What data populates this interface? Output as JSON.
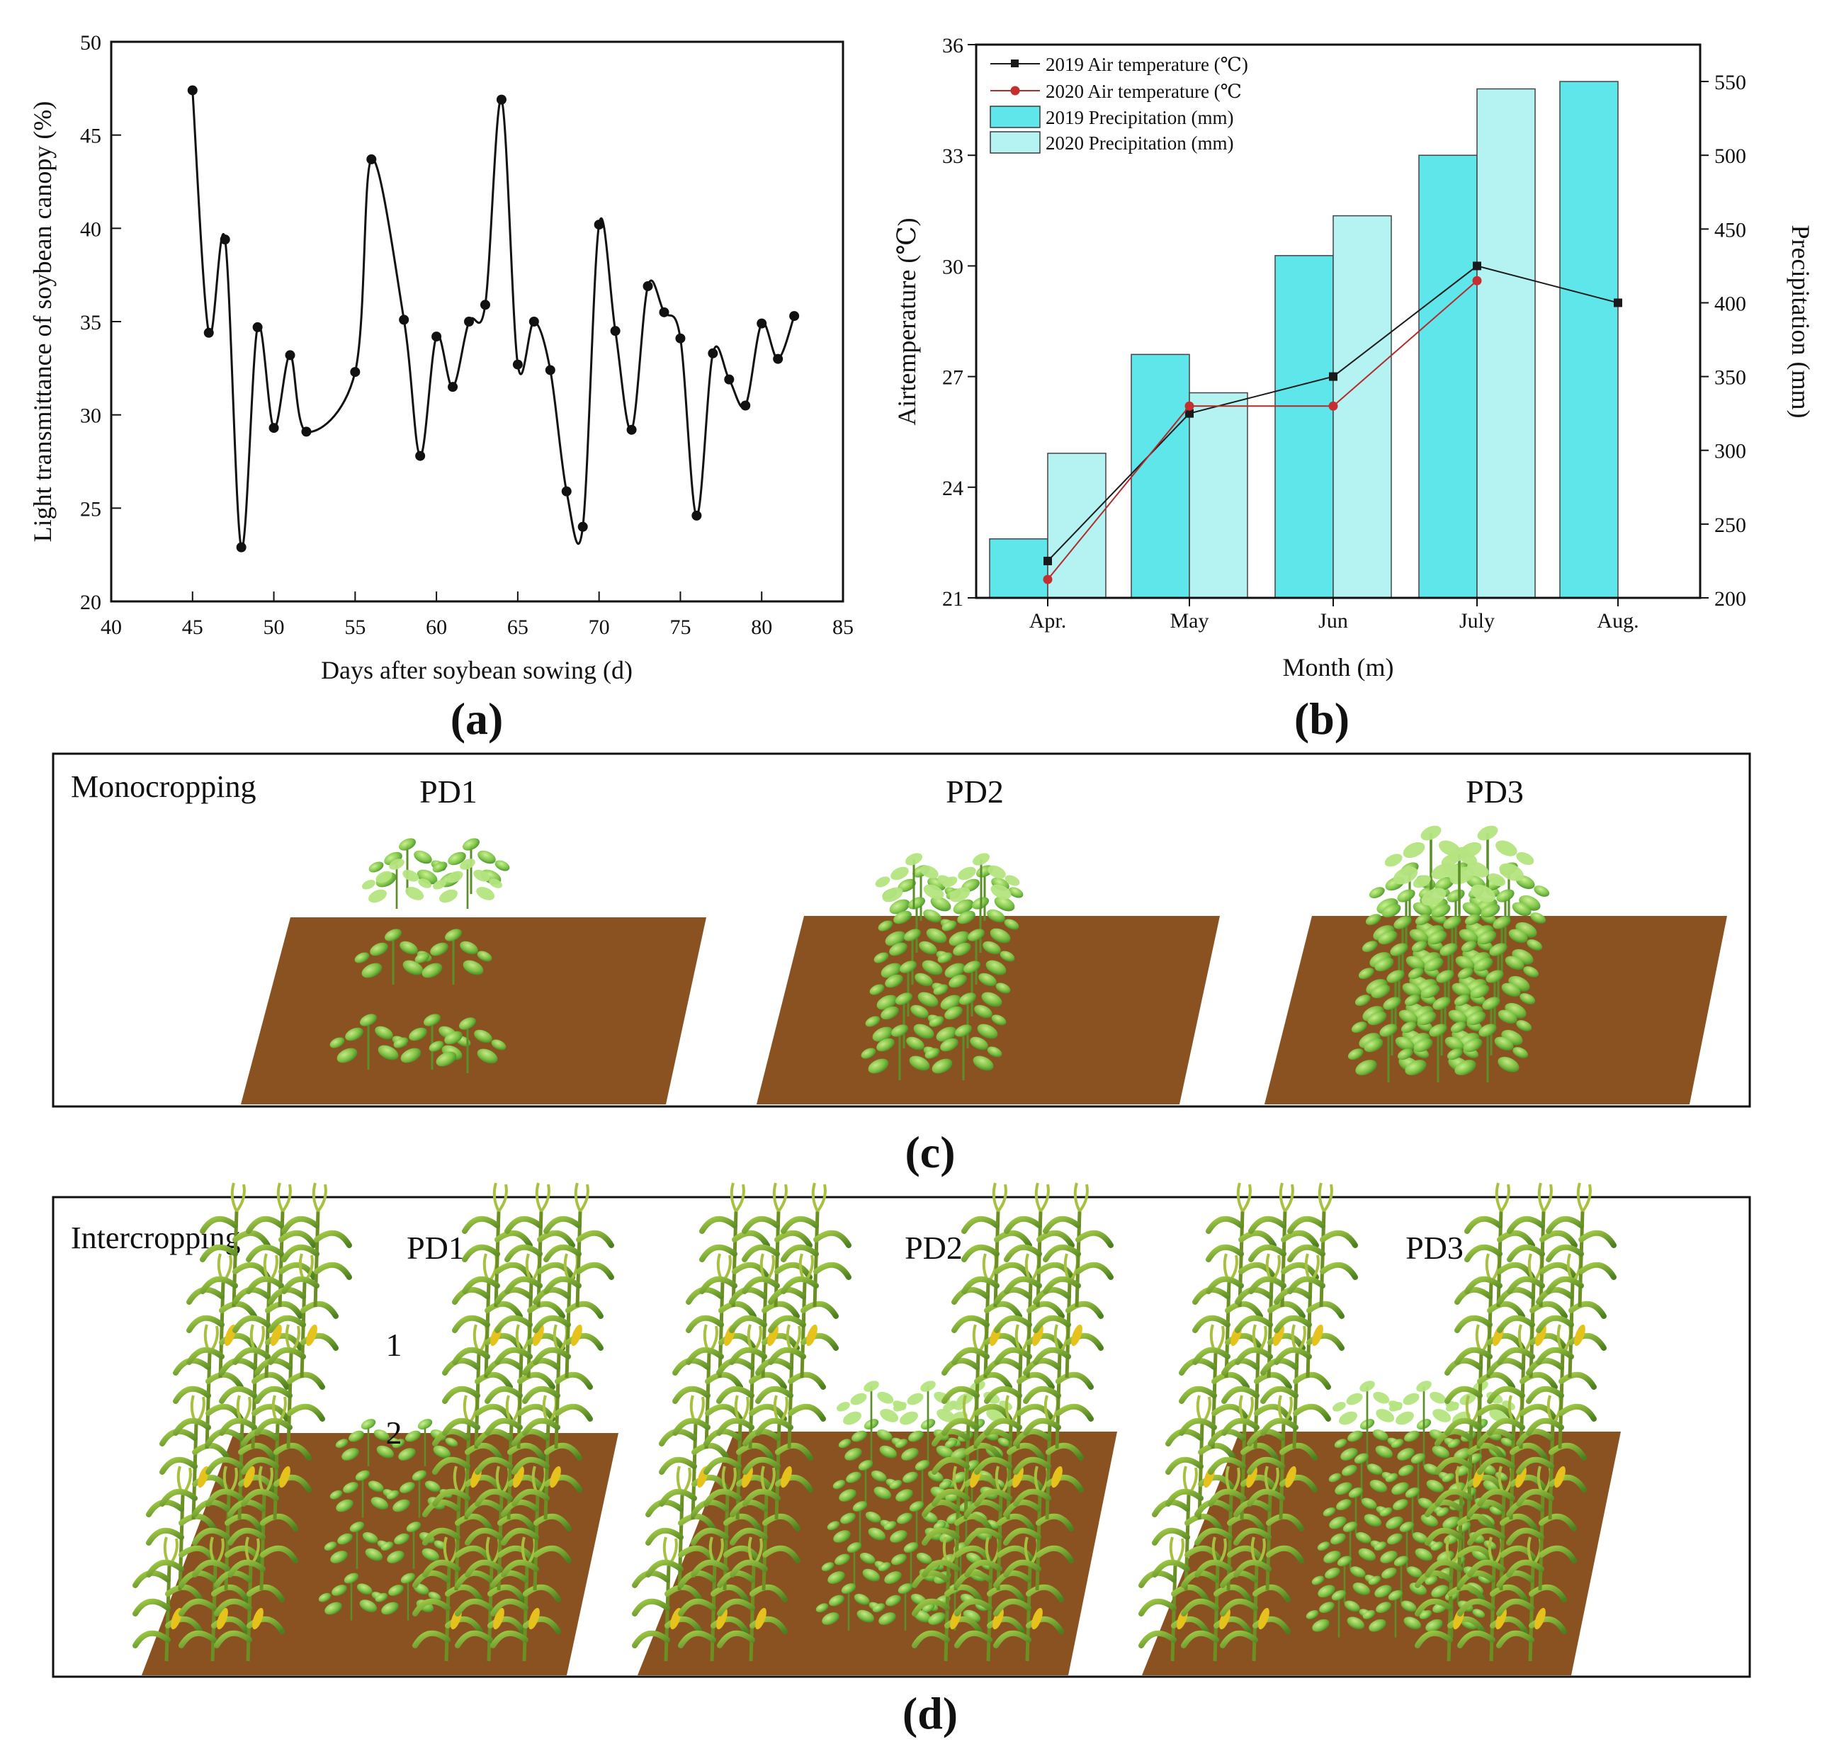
{
  "panels": {
    "a": "(a)",
    "b": "(b)",
    "c": "(c)",
    "d": "(d)"
  },
  "chart_data": [
    {
      "type": "line",
      "panel": "a",
      "xlabel": "Days after soybean sowing (d)",
      "ylabel": "Light transmittance of soybean canopy  (%)",
      "xlim": [
        40,
        85
      ],
      "ylim": [
        20,
        50
      ],
      "xticks": [
        40,
        45,
        50,
        55,
        60,
        65,
        70,
        75,
        80,
        85
      ],
      "yticks": [
        20,
        25,
        30,
        35,
        40,
        45,
        50
      ],
      "x": [
        45,
        46,
        47,
        48,
        49,
        50,
        51,
        52,
        55,
        56,
        58,
        59,
        60,
        61,
        62,
        63,
        64,
        65,
        66,
        67,
        68,
        69,
        70,
        71,
        72,
        73,
        74,
        75,
        76,
        77,
        78,
        79,
        80,
        81,
        82
      ],
      "y": [
        47.4,
        34.4,
        39.4,
        22.9,
        34.7,
        29.3,
        33.2,
        29.1,
        32.3,
        43.7,
        35.1,
        27.8,
        34.2,
        31.5,
        35.0,
        35.9,
        46.9,
        32.7,
        35.0,
        32.4,
        25.9,
        24.0,
        40.2,
        34.5,
        29.2,
        36.9,
        35.5,
        34.1,
        24.6,
        33.3,
        31.9,
        30.5,
        34.9,
        33.0,
        35.3
      ]
    },
    {
      "type": "bar+line",
      "panel": "b",
      "categories": [
        "Apr.",
        "May",
        "Jun",
        "July",
        "Aug."
      ],
      "xlabel": "Month (m)",
      "ylabel_left": "Airtemperature (℃)",
      "ylabel_right": "Precipitation (mm)",
      "ylim_left": [
        21,
        36
      ],
      "ylim_right": [
        200,
        575
      ],
      "yticks_left": [
        21,
        24,
        27,
        30,
        33,
        36
      ],
      "yticks_right": [
        200,
        250,
        300,
        350,
        400,
        450,
        500,
        550
      ],
      "legend": [
        "2019 Air temperature (℃)",
        "2020 Air temperature (℃",
        "2019 Precipitation (mm)",
        "2020 Precipitation (mm)"
      ],
      "bar_series": [
        {
          "name": "2019 Precipitation (mm)",
          "values": [
            240,
            365,
            432,
            500,
            550
          ],
          "color": "#5fe6ea"
        },
        {
          "name": "2020 Precipitation (mm)",
          "values": [
            298,
            339,
            459,
            545,
            null
          ],
          "color": "#b5f2f2"
        }
      ],
      "line_series": [
        {
          "name": "2019 Air temperature (℃)",
          "values": [
            22.0,
            26.0,
            27.0,
            30.0,
            29.0
          ],
          "color": "#1a1a1a"
        },
        {
          "name": "2020 Air temperature (℃",
          "values": [
            21.5,
            26.2,
            26.2,
            29.6,
            null
          ],
          "color": "#b22a2a"
        }
      ]
    }
  ],
  "diagram_c": {
    "title": "Monocropping",
    "labels": [
      "PD1",
      "PD2",
      "PD3"
    ]
  },
  "diagram_d": {
    "title": "Intercropping",
    "labels": [
      "PD1",
      "PD2",
      "PD3"
    ],
    "row_markers": [
      "1",
      "2"
    ]
  },
  "colors": {
    "soil": "#8b5221",
    "leaf_light": "#9ed66a",
    "leaf_mid": "#6fb83a",
    "leaf_dark": "#3f8a24",
    "corn_leaf": "#6a9f2a",
    "corn_ear": "#e6c21c"
  }
}
